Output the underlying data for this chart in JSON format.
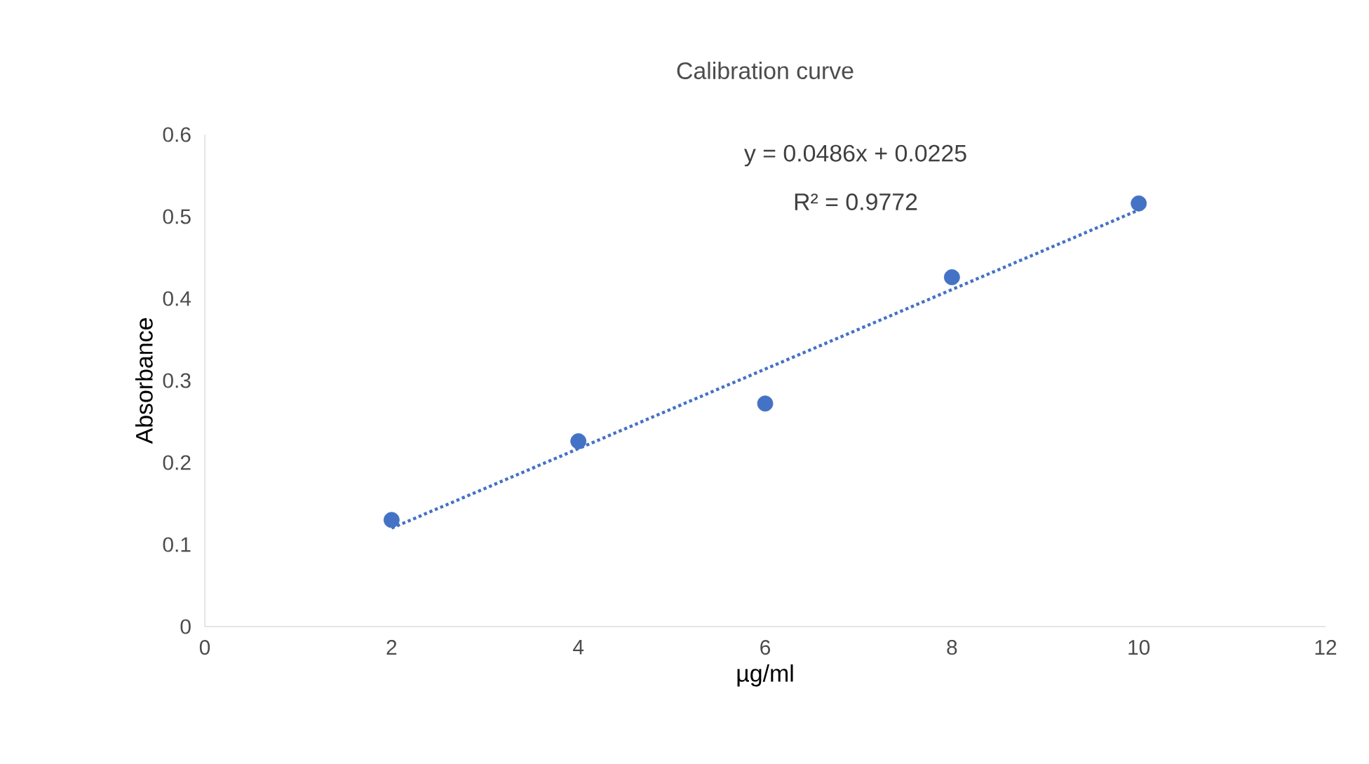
{
  "chart_data": {
    "type": "scatter",
    "title": "Calibration curve",
    "xlabel": "µg/ml",
    "ylabel": "Absorbance",
    "xlim": [
      0,
      12
    ],
    "xticks": [
      0,
      2,
      4,
      6,
      8,
      10,
      12
    ],
    "ylim": [
      0,
      0.6
    ],
    "yticks": [
      0,
      0.1,
      0.2,
      0.3,
      0.4,
      0.5,
      0.6
    ],
    "grid": false,
    "marker": "circle",
    "series": [
      {
        "color": "#4472c4",
        "x": [
          2,
          4,
          6,
          8,
          10
        ],
        "values": [
          0.13,
          0.226,
          0.272,
          0.426,
          0.516
        ]
      },
      {
        "type": "line",
        "line_style": "dotted",
        "marker": "none",
        "color": "#4472c4",
        "x": [
          2,
          10
        ],
        "values": [
          0.12,
          0.508
        ]
      }
    ],
    "annotations": [
      "y = 0.0486x + 0.0225",
      "R² = 0.9772"
    ]
  }
}
